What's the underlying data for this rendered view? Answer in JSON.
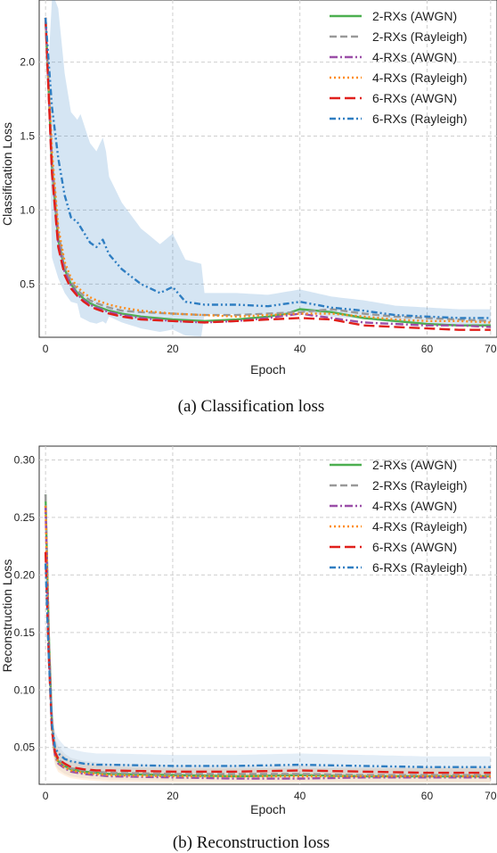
{
  "figure": {
    "panels": [
      {
        "caption": "(a)  Classification loss"
      },
      {
        "caption": "(b)  Reconstruction loss"
      }
    ]
  },
  "chart_data": [
    {
      "type": "line",
      "title": "",
      "xlabel": "Epoch",
      "ylabel": "Classification Loss",
      "xlim": [
        -1,
        71
      ],
      "ylim": [
        0.14,
        2.42
      ],
      "xticks": [
        0,
        20,
        40,
        60,
        70
      ],
      "yticks": [
        0.5,
        1.0,
        1.5,
        2.0
      ],
      "grid": true,
      "legend": "top-right",
      "series": [
        {
          "name": "2-RXs (AWGN)",
          "color": "#4caf50",
          "dash": "solid",
          "x": [
            0,
            1,
            2,
            3,
            4,
            5,
            6,
            7,
            8,
            10,
            12,
            15,
            20,
            25,
            30,
            35,
            38,
            40,
            45,
            50,
            55,
            60,
            65,
            70
          ],
          "y": [
            2.3,
            1.3,
            0.8,
            0.6,
            0.5,
            0.44,
            0.4,
            0.37,
            0.35,
            0.32,
            0.3,
            0.28,
            0.26,
            0.25,
            0.26,
            0.28,
            0.3,
            0.33,
            0.31,
            0.27,
            0.25,
            0.23,
            0.22,
            0.22
          ]
        },
        {
          "name": "2-RXs (Rayleigh)",
          "color": "#999999",
          "dash": "dash",
          "x": [
            0,
            1,
            2,
            3,
            4,
            5,
            6,
            7,
            8,
            10,
            12,
            15,
            20,
            25,
            30,
            35,
            40,
            45,
            50,
            55,
            60,
            65,
            70
          ],
          "y": [
            2.3,
            1.35,
            0.85,
            0.62,
            0.52,
            0.46,
            0.42,
            0.39,
            0.37,
            0.34,
            0.32,
            0.31,
            0.3,
            0.29,
            0.29,
            0.3,
            0.31,
            0.33,
            0.3,
            0.28,
            0.27,
            0.26,
            0.25
          ]
        },
        {
          "name": "4-RXs (AWGN)",
          "color": "#9b4fa8",
          "dash": "dashdot",
          "x": [
            0,
            1,
            2,
            3,
            4,
            5,
            6,
            7,
            8,
            10,
            12,
            15,
            20,
            25,
            30,
            35,
            40,
            45,
            50,
            55,
            60,
            65,
            70
          ],
          "y": [
            2.3,
            1.28,
            0.78,
            0.58,
            0.49,
            0.43,
            0.39,
            0.36,
            0.34,
            0.31,
            0.29,
            0.27,
            0.25,
            0.24,
            0.25,
            0.27,
            0.3,
            0.27,
            0.24,
            0.23,
            0.22,
            0.22,
            0.21
          ]
        },
        {
          "name": "4-RXs (Rayleigh)",
          "color": "#ff8c1a",
          "dash": "dot",
          "x": [
            0,
            1,
            2,
            3,
            4,
            5,
            6,
            7,
            8,
            10,
            12,
            15,
            20,
            25,
            30,
            35,
            40,
            45,
            50,
            55,
            60,
            65,
            70
          ],
          "y": [
            2.3,
            1.4,
            0.88,
            0.65,
            0.54,
            0.48,
            0.44,
            0.41,
            0.39,
            0.36,
            0.34,
            0.32,
            0.3,
            0.29,
            0.28,
            0.29,
            0.3,
            0.3,
            0.28,
            0.26,
            0.25,
            0.25,
            0.24
          ]
        },
        {
          "name": "6-RXs (AWGN)",
          "color": "#e0201c",
          "dash": "longdash",
          "x": [
            0,
            1,
            2,
            3,
            4,
            5,
            6,
            7,
            8,
            10,
            12,
            15,
            20,
            25,
            30,
            35,
            40,
            45,
            50,
            55,
            60,
            65,
            70
          ],
          "y": [
            2.3,
            1.25,
            0.75,
            0.56,
            0.47,
            0.42,
            0.38,
            0.35,
            0.33,
            0.3,
            0.28,
            0.26,
            0.25,
            0.24,
            0.25,
            0.26,
            0.27,
            0.26,
            0.22,
            0.21,
            0.2,
            0.19,
            0.19
          ]
        },
        {
          "name": "6-RXs (Rayleigh)",
          "color": "#2f7ec2",
          "dash": "dashdotdot",
          "x": [
            0,
            1,
            2,
            3,
            4,
            5,
            6,
            7,
            8,
            9,
            10,
            12,
            15,
            18,
            20,
            22,
            25,
            30,
            35,
            40,
            45,
            50,
            55,
            60,
            65,
            70
          ],
          "y": [
            2.3,
            1.7,
            1.35,
            1.1,
            0.95,
            0.92,
            0.85,
            0.78,
            0.75,
            0.8,
            0.7,
            0.6,
            0.5,
            0.44,
            0.48,
            0.38,
            0.36,
            0.36,
            0.35,
            0.38,
            0.34,
            0.32,
            0.29,
            0.28,
            0.27,
            0.27
          ]
        }
      ]
    },
    {
      "type": "line",
      "title": "",
      "xlabel": "Epoch",
      "ylabel": "Reconstruction Loss",
      "xlim": [
        -1,
        71
      ],
      "ylim": [
        0.018,
        0.312
      ],
      "xticks": [
        0,
        20,
        40,
        60,
        70
      ],
      "yticks": [
        0.05,
        0.1,
        0.15,
        0.2,
        0.25,
        0.3
      ],
      "grid": true,
      "legend": "top-right",
      "series": [
        {
          "name": "2-RXs (AWGN)",
          "color": "#4caf50",
          "dash": "solid",
          "x": [
            0,
            0.5,
            1,
            1.5,
            2,
            3,
            4,
            6,
            8,
            10,
            20,
            30,
            40,
            50,
            60,
            70
          ],
          "y": [
            0.27,
            0.15,
            0.07,
            0.045,
            0.038,
            0.034,
            0.031,
            0.029,
            0.028,
            0.027,
            0.026,
            0.025,
            0.026,
            0.025,
            0.025,
            0.025
          ]
        },
        {
          "name": "2-RXs (Rayleigh)",
          "color": "#999999",
          "dash": "dash",
          "x": [
            0,
            0.5,
            1,
            1.5,
            2,
            3,
            4,
            6,
            8,
            10,
            20,
            30,
            40,
            50,
            60,
            70
          ],
          "y": [
            0.27,
            0.15,
            0.07,
            0.046,
            0.04,
            0.035,
            0.032,
            0.03,
            0.029,
            0.028,
            0.027,
            0.027,
            0.027,
            0.026,
            0.026,
            0.026
          ]
        },
        {
          "name": "4-RXs (AWGN)",
          "color": "#9b4fa8",
          "dash": "dashdot",
          "x": [
            0,
            0.5,
            1,
            1.5,
            2,
            3,
            4,
            6,
            8,
            10,
            20,
            30,
            40,
            50,
            60,
            70
          ],
          "y": [
            0.26,
            0.14,
            0.065,
            0.043,
            0.036,
            0.032,
            0.029,
            0.027,
            0.026,
            0.025,
            0.024,
            0.023,
            0.023,
            0.024,
            0.024,
            0.024
          ]
        },
        {
          "name": "4-RXs (Rayleigh)",
          "color": "#ff8c1a",
          "dash": "dot",
          "x": [
            0,
            0.5,
            1,
            1.5,
            2,
            3,
            4,
            6,
            8,
            10,
            20,
            30,
            40,
            50,
            60,
            70
          ],
          "y": [
            0.26,
            0.14,
            0.066,
            0.044,
            0.037,
            0.033,
            0.03,
            0.028,
            0.027,
            0.026,
            0.025,
            0.025,
            0.025,
            0.025,
            0.025,
            0.025
          ]
        },
        {
          "name": "6-RXs (AWGN)",
          "color": "#e0201c",
          "dash": "longdash",
          "x": [
            0,
            0.5,
            1,
            1.5,
            2,
            3,
            4,
            6,
            8,
            10,
            20,
            30,
            40,
            50,
            60,
            70
          ],
          "y": [
            0.22,
            0.13,
            0.065,
            0.046,
            0.04,
            0.036,
            0.033,
            0.031,
            0.03,
            0.03,
            0.029,
            0.029,
            0.03,
            0.029,
            0.028,
            0.028
          ]
        },
        {
          "name": "6-RXs (Rayleigh)",
          "color": "#2f7ec2",
          "dash": "dashdotdot",
          "x": [
            0,
            0.5,
            1,
            1.5,
            2,
            3,
            4,
            6,
            8,
            10,
            20,
            30,
            40,
            50,
            60,
            70
          ],
          "y": [
            0.21,
            0.13,
            0.07,
            0.05,
            0.045,
            0.04,
            0.038,
            0.036,
            0.035,
            0.035,
            0.034,
            0.034,
            0.035,
            0.034,
            0.033,
            0.033
          ]
        }
      ]
    }
  ]
}
